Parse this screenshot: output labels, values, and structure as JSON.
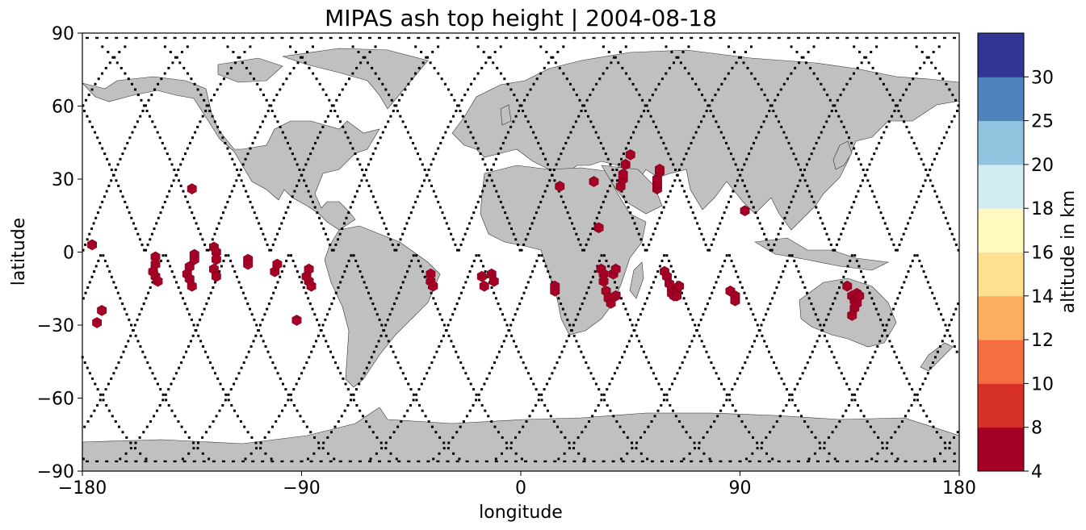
{
  "chart_data": {
    "type": "scatter",
    "title": "MIPAS ash top height | 2004-08-18",
    "xlabel": "longitude",
    "ylabel": "latitude",
    "xlim": [
      -180,
      180
    ],
    "ylim": [
      -90,
      90
    ],
    "xticks": [
      -180,
      -90,
      0,
      90,
      180
    ],
    "xtick_labels": [
      "−180",
      "−90",
      "0",
      "90",
      "180"
    ],
    "yticks": [
      90,
      60,
      30,
      0,
      -30,
      -60,
      -90
    ],
    "ytick_labels": [
      "90",
      "60",
      "30",
      "0",
      "−30",
      "−60",
      "−90"
    ],
    "grid": false,
    "colorbar": {
      "label": "altitude in km",
      "boundaries": [
        4,
        8,
        10,
        12,
        14,
        16,
        18,
        20,
        25,
        30
      ],
      "tick_labels": [
        "4",
        "8",
        "10",
        "12",
        "14",
        "16",
        "18",
        "20",
        "25",
        "30"
      ],
      "colors": [
        "#a50026",
        "#d73027",
        "#f46d43",
        "#fdae61",
        "#fee090",
        "#fff8bf",
        "#d1ecf3",
        "#91c4df",
        "#4f83bc",
        "#313695"
      ]
    },
    "ash_color": "#a50026",
    "land_color": "#c0c0c0",
    "track_color": "#000000",
    "ash_detections": [
      [
        -176,
        3
      ],
      [
        -174,
        -29
      ],
      [
        -172,
        -24
      ],
      [
        -150,
        -2
      ],
      [
        -150,
        -5
      ],
      [
        -151,
        -8
      ],
      [
        -150,
        -10
      ],
      [
        -149,
        -12
      ],
      [
        -136,
        -6
      ],
      [
        -137,
        -9
      ],
      [
        -136,
        -11
      ],
      [
        -135,
        -14
      ],
      [
        -134,
        -1
      ],
      [
        -134,
        -3
      ],
      [
        -135,
        26
      ],
      [
        -126,
        2
      ],
      [
        -125,
        0
      ],
      [
        -125,
        -3
      ],
      [
        -126,
        -7
      ],
      [
        -125,
        -10
      ],
      [
        -112,
        -3
      ],
      [
        -112,
        -5
      ],
      [
        -100,
        -5
      ],
      [
        -101,
        -8
      ],
      [
        -92,
        -28
      ],
      [
        -87,
        -7
      ],
      [
        -88,
        -10
      ],
      [
        -87,
        -12
      ],
      [
        -86,
        -14
      ],
      [
        -37,
        -9
      ],
      [
        -37,
        -12
      ],
      [
        -36,
        -14
      ],
      [
        -16,
        -10
      ],
      [
        -15,
        -14
      ],
      [
        -12,
        -9
      ],
      [
        -11,
        -12
      ],
      [
        14,
        -14
      ],
      [
        14,
        -16
      ],
      [
        16,
        27
      ],
      [
        30,
        29
      ],
      [
        32,
        10
      ],
      [
        33,
        -7
      ],
      [
        34,
        -9
      ],
      [
        34,
        -12
      ],
      [
        35,
        -16
      ],
      [
        36,
        -19
      ],
      [
        37,
        -21
      ],
      [
        38,
        -9
      ],
      [
        39,
        -7
      ],
      [
        39,
        -18
      ],
      [
        41,
        27
      ],
      [
        42,
        30
      ],
      [
        42,
        32
      ],
      [
        43,
        36
      ],
      [
        45,
        40
      ],
      [
        56,
        26
      ],
      [
        56,
        28
      ],
      [
        56,
        30
      ],
      [
        57,
        33
      ],
      [
        57,
        34
      ],
      [
        59,
        -8
      ],
      [
        60,
        -10
      ],
      [
        61,
        -13
      ],
      [
        62,
        -15
      ],
      [
        62,
        -17
      ],
      [
        63,
        -18
      ],
      [
        64,
        -16
      ],
      [
        65,
        -14
      ],
      [
        64,
        -18
      ],
      [
        86,
        -16
      ],
      [
        88,
        -18
      ],
      [
        88,
        -20
      ],
      [
        92,
        17
      ],
      [
        134,
        -14
      ],
      [
        136,
        -18
      ],
      [
        137,
        -20
      ],
      [
        137,
        -23
      ],
      [
        136,
        -26
      ],
      [
        138,
        -17
      ],
      [
        138,
        -21
      ],
      [
        139,
        -18
      ]
    ]
  }
}
